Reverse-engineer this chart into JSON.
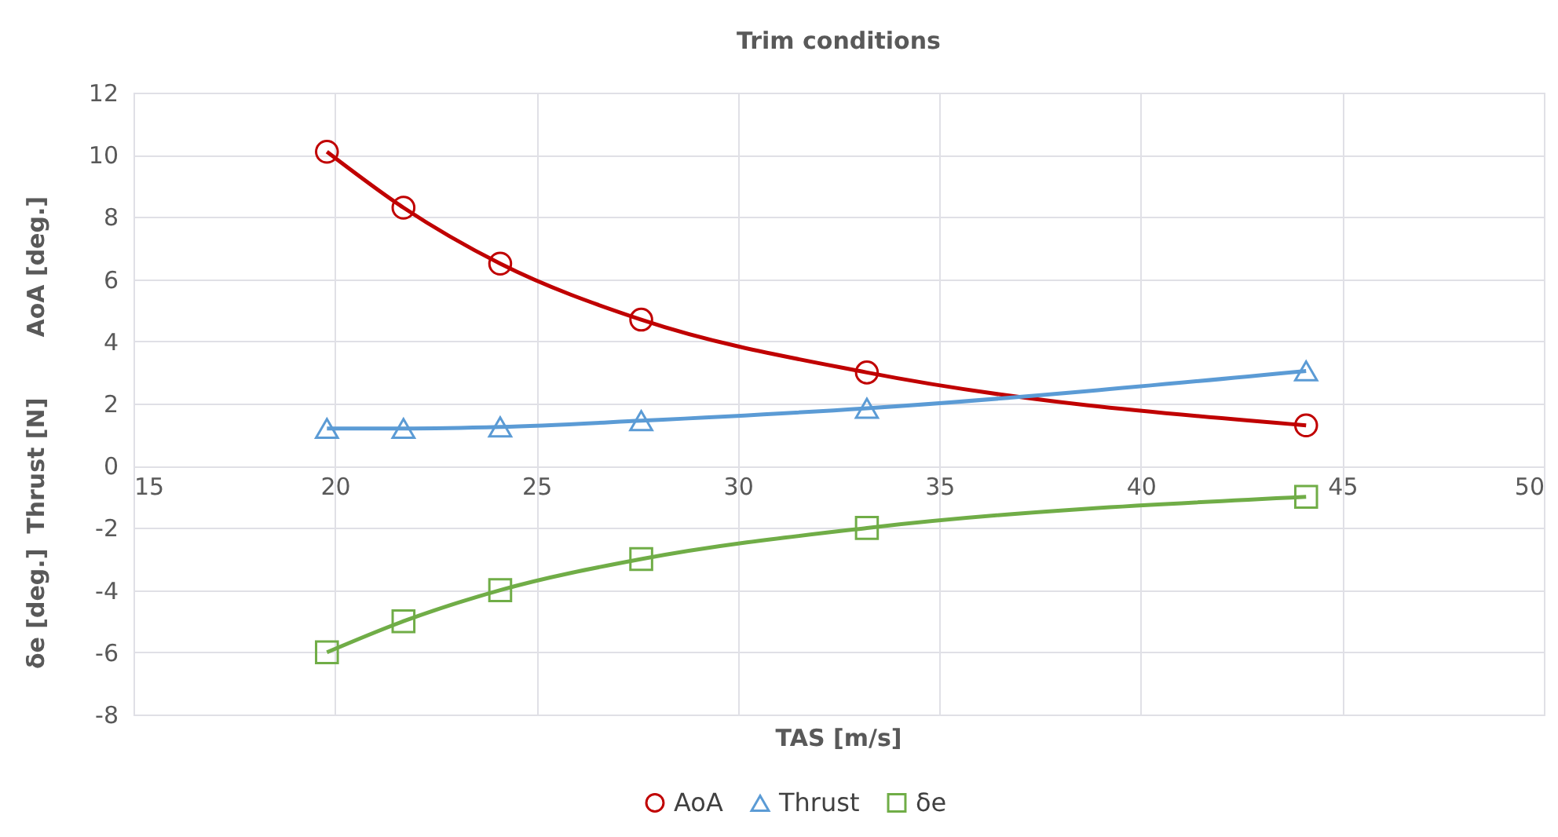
{
  "chart_data": {
    "type": "line",
    "title": "Trim conditions",
    "xlabel": "TAS [m/s]",
    "ylabel": "AoA [deg.]",
    "annotations": [
      "Thrust [N]",
      "δe [deg.]"
    ],
    "x": [
      19.8,
      21.7,
      24.1,
      27.6,
      33.2,
      44.1
    ],
    "series": [
      {
        "name": "AoA",
        "color": "#c00000",
        "marker": "circle",
        "values": [
          10.1,
          8.3,
          6.5,
          4.7,
          3.0,
          1.3
        ]
      },
      {
        "name": "Thrust",
        "color": "#5b9bd5",
        "marker": "triangle",
        "values": [
          1.2,
          1.2,
          1.25,
          1.45,
          1.85,
          3.05
        ]
      },
      {
        "name": "δe",
        "color": "#70ad47",
        "marker": "square",
        "values": [
          -6,
          -5,
          -4,
          -3,
          -2,
          -1
        ]
      }
    ],
    "xlim": [
      15,
      50
    ],
    "xticks": [
      15,
      20,
      25,
      30,
      35,
      40,
      45,
      50
    ],
    "ylim": [
      -8,
      12
    ],
    "yticks": [
      -8,
      -6,
      -4,
      -2,
      0,
      2,
      4,
      6,
      8,
      10,
      12
    ],
    "grid": true,
    "legend": "bottom",
    "line_style": "solid"
  }
}
